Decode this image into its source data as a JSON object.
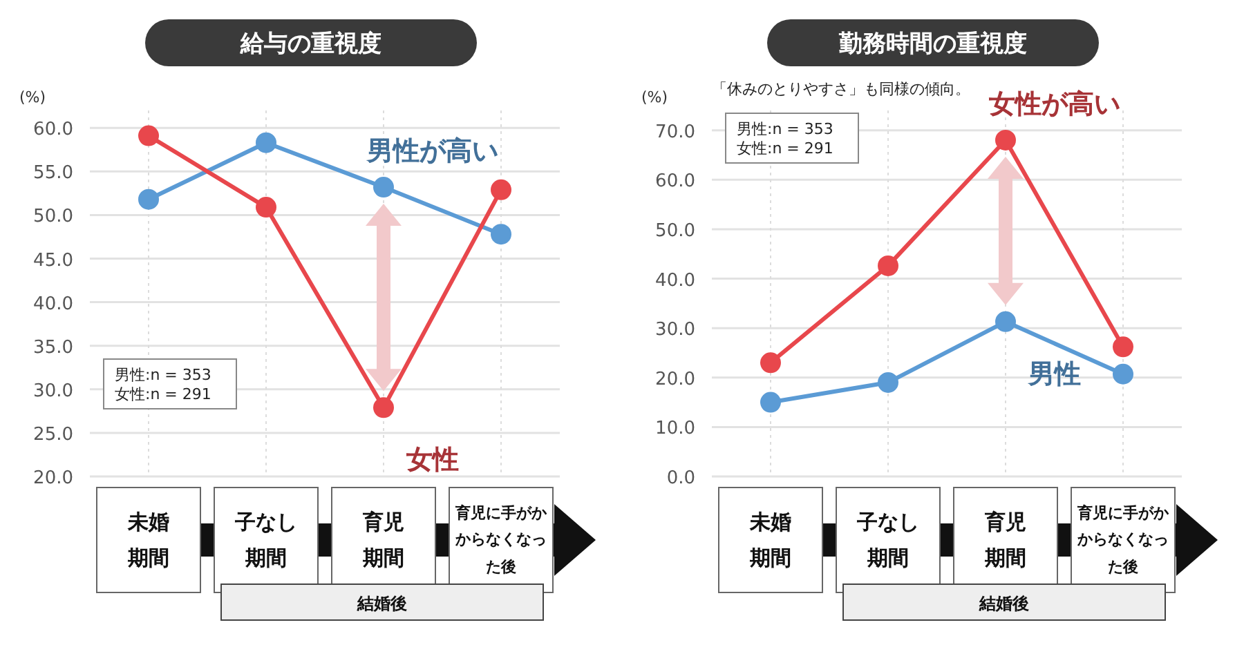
{
  "chart_data": [
    {
      "type": "line",
      "title": "給与の重視度",
      "ylabel": "(%)",
      "categories": [
        "未婚期間",
        "子なし期間",
        "育児期間",
        "育児に手がかからなくなった後"
      ],
      "series": [
        {
          "color": "#5b9bd5",
          "values": [
            51.8,
            58.3,
            53.2,
            47.8
          ]
        },
        {
          "color": "#e8474c",
          "values": [
            59.1,
            50.9,
            27.9,
            52.9
          ]
        }
      ],
      "ylim": [
        20,
        62
      ],
      "yticks": [
        {
          "value": 20,
          "label": "20.0"
        },
        {
          "value": 25,
          "label": "25.0"
        },
        {
          "value": 30,
          "label": "30.0"
        },
        {
          "value": 35,
          "label": "35.0"
        },
        {
          "value": 40,
          "label": "40.0"
        },
        {
          "value": 45,
          "label": "45.0"
        },
        {
          "value": 50,
          "label": "50.0"
        },
        {
          "value": 55,
          "label": "55.0"
        },
        {
          "value": 60,
          "label": "60.0"
        }
      ],
      "grid": true,
      "marker": "circle",
      "annotations": [
        "男性が高い",
        "女性",
        "男性:n = 353\n女性:n = 291",
        "結婚後"
      ]
    },
    {
      "type": "line",
      "title": "勤務時間の重視度",
      "subtitle": "「休みのとりやすさ」も同様の傾向。",
      "ylabel": "(%)",
      "categories": [
        "未婚期間",
        "子なし期間",
        "育児期間",
        "育児に手がかからなくなった後"
      ],
      "series": [
        {
          "color": "#5b9bd5",
          "values": [
            15.0,
            19.0,
            31.3,
            20.7
          ]
        },
        {
          "color": "#e8474c",
          "values": [
            23.0,
            42.6,
            68.0,
            26.2
          ]
        }
      ],
      "ylim": [
        0,
        74
      ],
      "yticks": [
        {
          "value": 0,
          "label": "0.0"
        },
        {
          "value": 10,
          "label": "10.0"
        },
        {
          "value": 20,
          "label": "20.0"
        },
        {
          "value": 30,
          "label": "30.0"
        },
        {
          "value": 40,
          "label": "40.0"
        },
        {
          "value": 50,
          "label": "50.0"
        },
        {
          "value": 60,
          "label": "60.0"
        },
        {
          "value": 70,
          "label": "70.0"
        }
      ],
      "grid": true,
      "marker": "circle",
      "annotations": [
        "女性が高い",
        "男性",
        "男性:n = 353\n女性:n = 291",
        "結婚後"
      ]
    }
  ]
}
